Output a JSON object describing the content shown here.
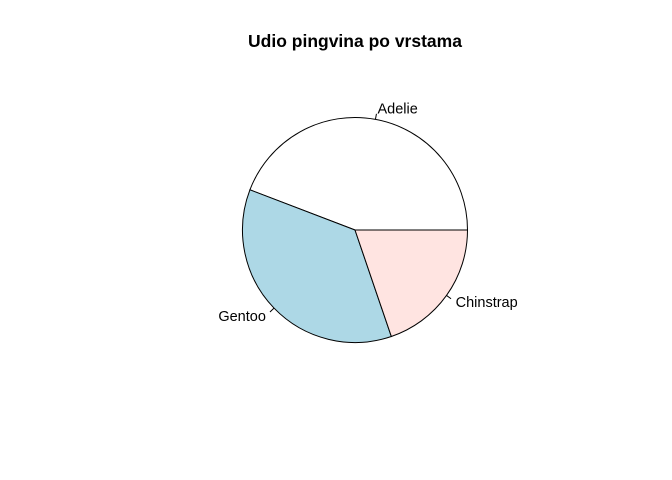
{
  "chart_data": {
    "type": "pie",
    "title": "Udio pingvina po vrstama",
    "slices": [
      {
        "label": "Adelie",
        "value": 152,
        "color": "#FFFFFF"
      },
      {
        "label": "Gentoo",
        "value": 124,
        "color": "#ADD8E6"
      },
      {
        "label": "Chinstrap",
        "value": 68,
        "color": "#FFE4E1"
      }
    ],
    "start_angle_deg": 0,
    "direction": "counterclockwise",
    "legend": "none"
  }
}
